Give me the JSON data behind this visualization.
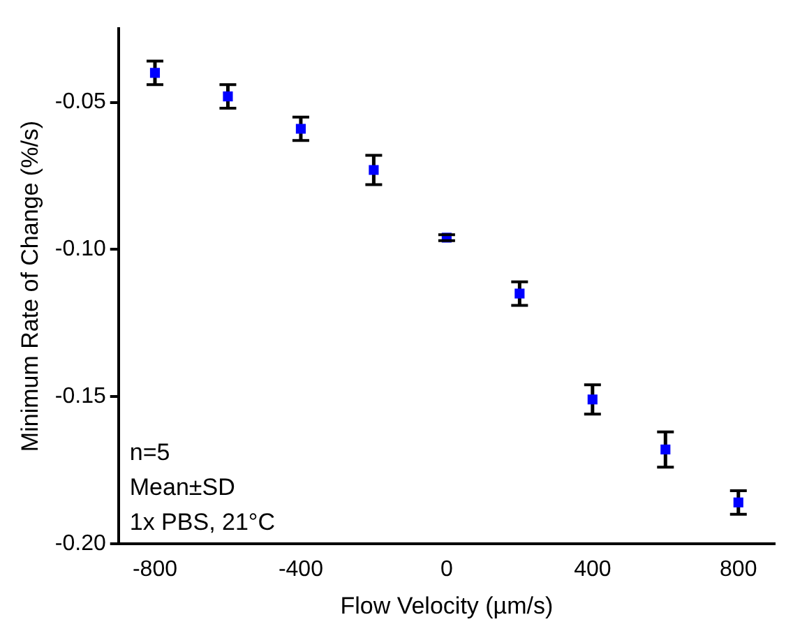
{
  "chart_data": {
    "type": "scatter",
    "xlabel": "Flow Velocity (µm/s)",
    "ylabel": "Minimum Rate of Change (%/s)",
    "x": [
      -800,
      -600,
      -400,
      -200,
      0,
      200,
      400,
      600,
      800
    ],
    "series": [
      {
        "color": "#0000ff",
        "values": [
          -0.04,
          -0.048,
          -0.059,
          -0.073,
          -0.096,
          -0.115,
          -0.151,
          -0.168,
          -0.186
        ],
        "errors": [
          0.004,
          0.004,
          0.004,
          0.005,
          0.001,
          0.004,
          0.005,
          0.006,
          0.004
        ]
      }
    ],
    "xlim": [
      -900,
      900
    ],
    "xticks": [
      -800,
      -400,
      0,
      400,
      800
    ],
    "ylim": [
      -0.2,
      -0.025
    ],
    "yticks": [
      {
        "value": -0.2,
        "label": "-0.20"
      },
      {
        "value": -0.15,
        "label": "-0.15"
      },
      {
        "value": -0.1,
        "label": "-0.10"
      },
      {
        "value": -0.05,
        "label": "-0.05"
      }
    ],
    "marker": "square",
    "grid": false,
    "legend": false,
    "annotations": [
      "n=5",
      "Mean±SD",
      "1x PBS, 21°C"
    ]
  }
}
